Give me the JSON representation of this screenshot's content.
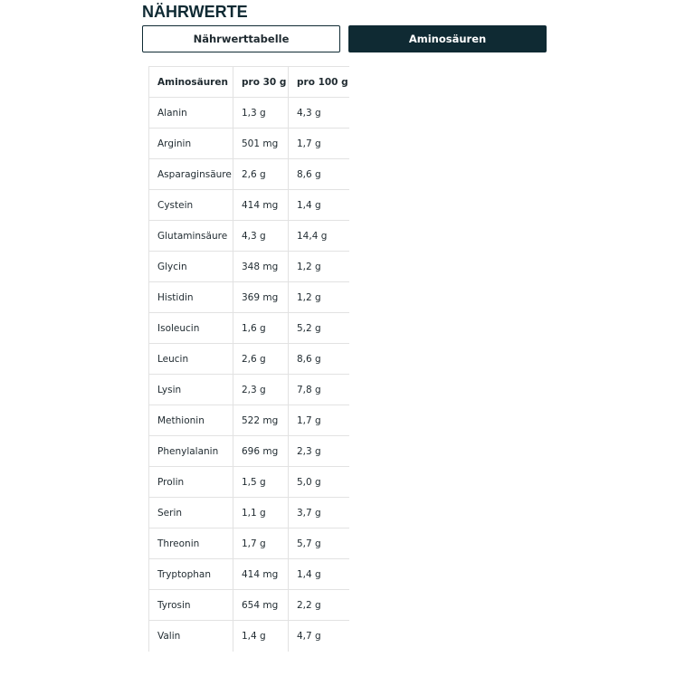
{
  "header": {
    "title": "NÄHRWERTE"
  },
  "tabs": [
    {
      "label": "Nährwerttabelle",
      "active": false
    },
    {
      "label": "Aminosäuren",
      "active": true
    }
  ],
  "table": {
    "columns": [
      "Aminosäuren",
      "pro 30 g",
      "pro 100 g"
    ],
    "rows": [
      [
        "Alanin",
        "1,3 g",
        "4,3 g"
      ],
      [
        "Arginin",
        "501 mg",
        "1,7 g"
      ],
      [
        "Asparaginsäure",
        "2,6 g",
        "8,6 g"
      ],
      [
        "Cystein",
        "414 mg",
        "1,4 g"
      ],
      [
        "Glutaminsäure",
        "4,3 g",
        "14,4 g"
      ],
      [
        "Glycin",
        "348 mg",
        "1,2 g"
      ],
      [
        "Histidin",
        "369 mg",
        "1,2 g"
      ],
      [
        "Isoleucin",
        "1,6 g",
        "5,2 g"
      ],
      [
        "Leucin",
        "2,6 g",
        "8,6 g"
      ],
      [
        "Lysin",
        "2,3 g",
        "7,8 g"
      ],
      [
        "Methionin",
        "522 mg",
        "1,7 g"
      ],
      [
        "Phenylalanin",
        "696 mg",
        "2,3 g"
      ],
      [
        "Prolin",
        "1,5 g",
        "5,0 g"
      ],
      [
        "Serin",
        "1,1 g",
        "3,7 g"
      ],
      [
        "Threonin",
        "1,7 g",
        "5,7 g"
      ],
      [
        "Tryptophan",
        "414 mg",
        "1,4 g"
      ],
      [
        "Tyrosin",
        "654 mg",
        "2,2 g"
      ],
      [
        "Valin",
        "1,4 g",
        "4,7 g"
      ]
    ]
  }
}
